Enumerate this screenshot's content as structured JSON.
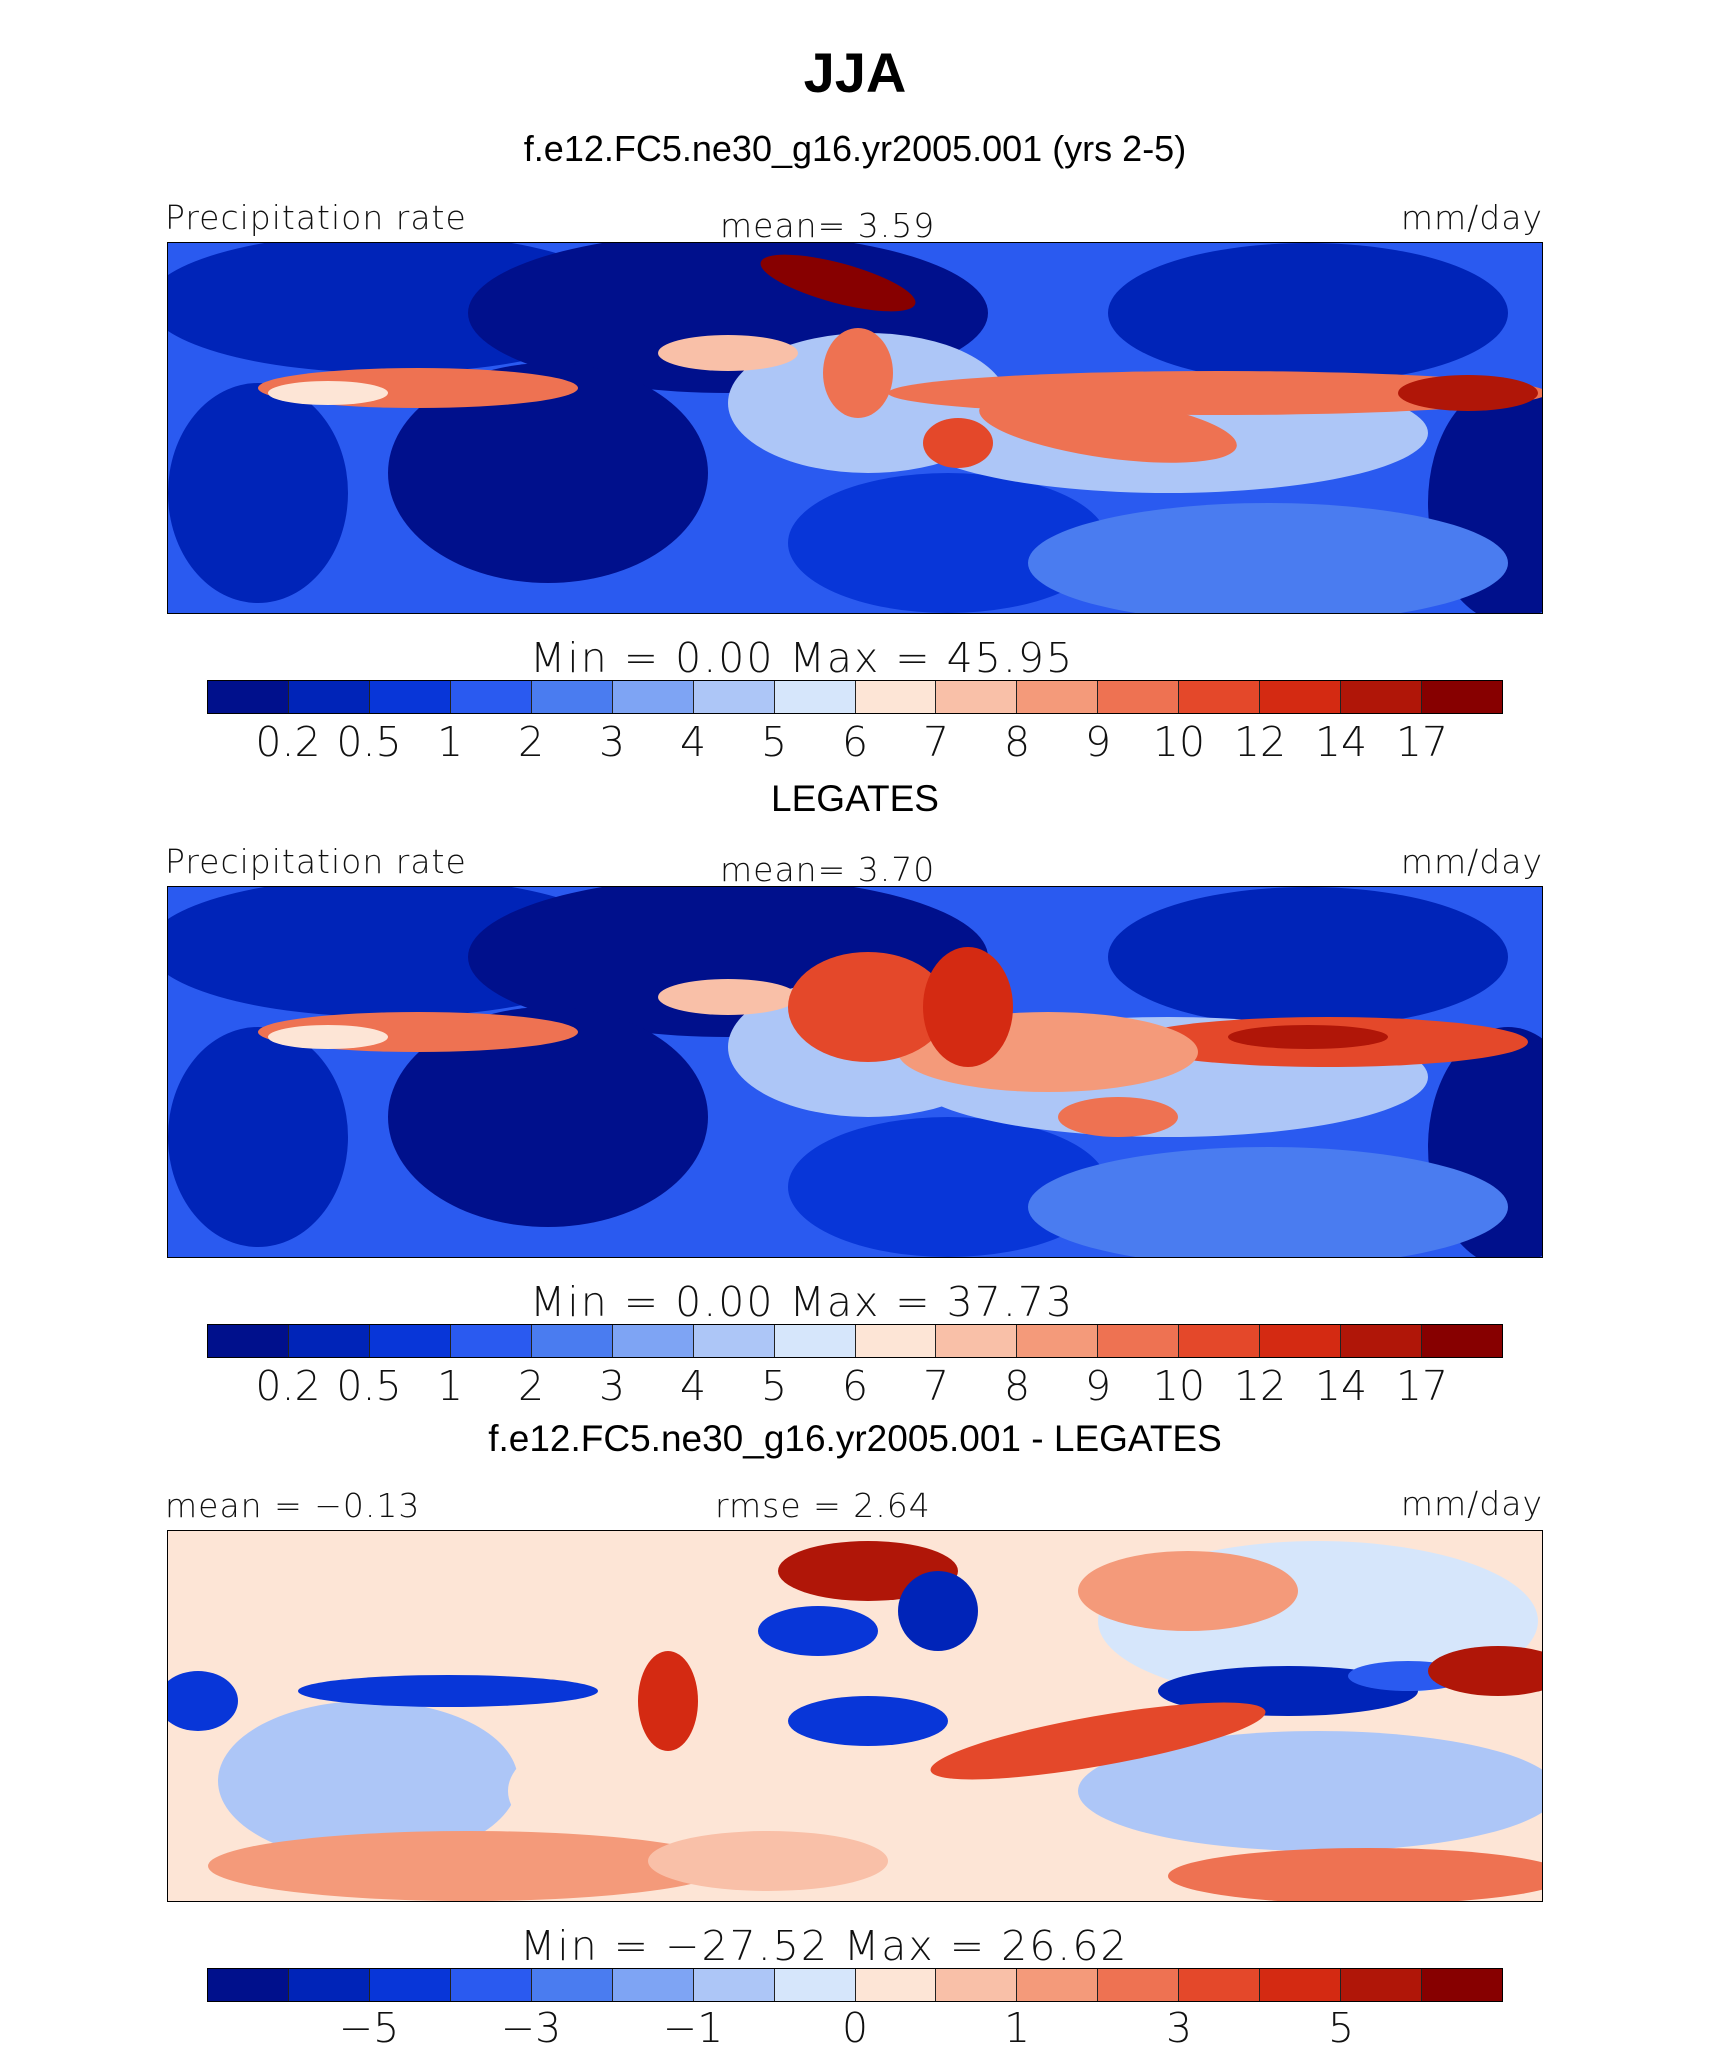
{
  "title": "JJA",
  "subtitle": "f.e12.FC5.ne30_g16.yr2005.001 (yrs 2-5)",
  "colors": {
    "precip": [
      "#00108c",
      "#0024b8",
      "#0836d8",
      "#2a5af0",
      "#4a7cf0",
      "#7ea4f4",
      "#adc6f7",
      "#d6e6fb",
      "#fde5d6",
      "#f9c0a8",
      "#f49a7a",
      "#ee7252",
      "#e4482a",
      "#d42a12",
      "#b01608",
      "#870000"
    ],
    "diff": [
      "#00108c",
      "#0024b8",
      "#0836d8",
      "#2a5af0",
      "#4a7cf0",
      "#7ea4f4",
      "#adc6f7",
      "#d6e6fb",
      "#fde5d6",
      "#f9c0a8",
      "#f49a7a",
      "#ee7252",
      "#e4482a",
      "#d42a12",
      "#b01608",
      "#870000"
    ]
  },
  "panels": [
    {
      "left_label": "Precipitation rate",
      "center_label": "mean=    3.59",
      "right_label": "mm/day",
      "stats": "Min  =      0.00  Max  =     45.95",
      "caption": "",
      "scale": "precip"
    },
    {
      "left_label": "Precipitation rate",
      "center_label": "mean=    3.70",
      "right_label": "mm/day",
      "stats": "Min  =      0.00  Max  =     37.73",
      "caption": "LEGATES",
      "scale": "precip"
    },
    {
      "left_label": "mean  =   −0.13",
      "center_label": "rmse  =    2.64",
      "right_label": "mm/day",
      "stats": "Min  = −27.52  Max  =    26.62",
      "caption": "f.e12.FC5.ne30_g16.yr2005.001 - LEGATES",
      "scale": "diff"
    }
  ],
  "chart_data": [
    {
      "type": "heatmap",
      "title": "JJA",
      "subtitle": "f.e12.FC5.ne30_g16.yr2005.001 (yrs 2-5)",
      "variable": "Precipitation rate",
      "units": "mm/day",
      "mean": 3.59,
      "min": 0.0,
      "max": 45.95,
      "colorbar_levels": [
        0.2,
        0.5,
        1,
        2,
        3,
        4,
        5,
        6,
        7,
        8,
        9,
        10,
        12,
        14,
        17
      ],
      "colorbar_tick_labels": [
        "0.2",
        "0.5",
        "1",
        "2",
        "3",
        "4",
        "5",
        "6",
        "7",
        "8",
        "9",
        "10",
        "12",
        "14",
        "17"
      ]
    },
    {
      "type": "heatmap",
      "title": "LEGATES",
      "variable": "Precipitation rate",
      "units": "mm/day",
      "mean": 3.7,
      "min": 0.0,
      "max": 37.73,
      "colorbar_levels": [
        0.2,
        0.5,
        1,
        2,
        3,
        4,
        5,
        6,
        7,
        8,
        9,
        10,
        12,
        14,
        17
      ],
      "colorbar_tick_labels": [
        "0.2",
        "0.5",
        "1",
        "2",
        "3",
        "4",
        "5",
        "6",
        "7",
        "8",
        "9",
        "10",
        "12",
        "14",
        "17"
      ]
    },
    {
      "type": "heatmap",
      "title": "f.e12.FC5.ne30_g16.yr2005.001 - LEGATES",
      "units": "mm/day",
      "mean": -0.13,
      "rmse": 2.64,
      "min": -27.52,
      "max": 26.62,
      "colorbar_levels": [
        -5,
        -4,
        -3,
        -2,
        -1,
        -0.5,
        0,
        0.5,
        1,
        2,
        3,
        4,
        5
      ],
      "colorbar_tick_labels": [
        "−5",
        "−3",
        "−1",
        "0",
        "1",
        "3",
        "5"
      ]
    }
  ]
}
